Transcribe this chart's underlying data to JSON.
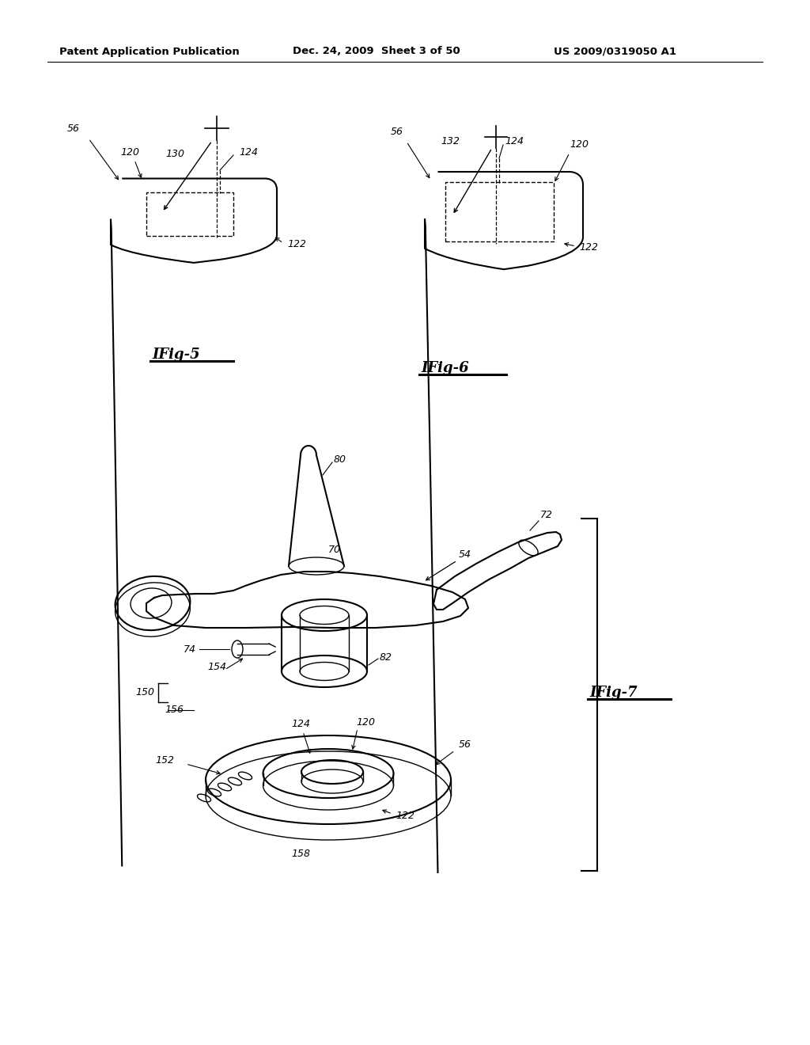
{
  "bg_color": "#ffffff",
  "line_color": "#000000",
  "fig_width": 10.24,
  "fig_height": 13.2,
  "header_left": "Patent Application Publication",
  "header_mid": "Dec. 24, 2009  Sheet 3 of 50",
  "header_right": "US 2009/0319050 A1",
  "fig5_label": "IFig-5",
  "fig6_label": "IFig-6",
  "fig7_label": "IFig-7"
}
